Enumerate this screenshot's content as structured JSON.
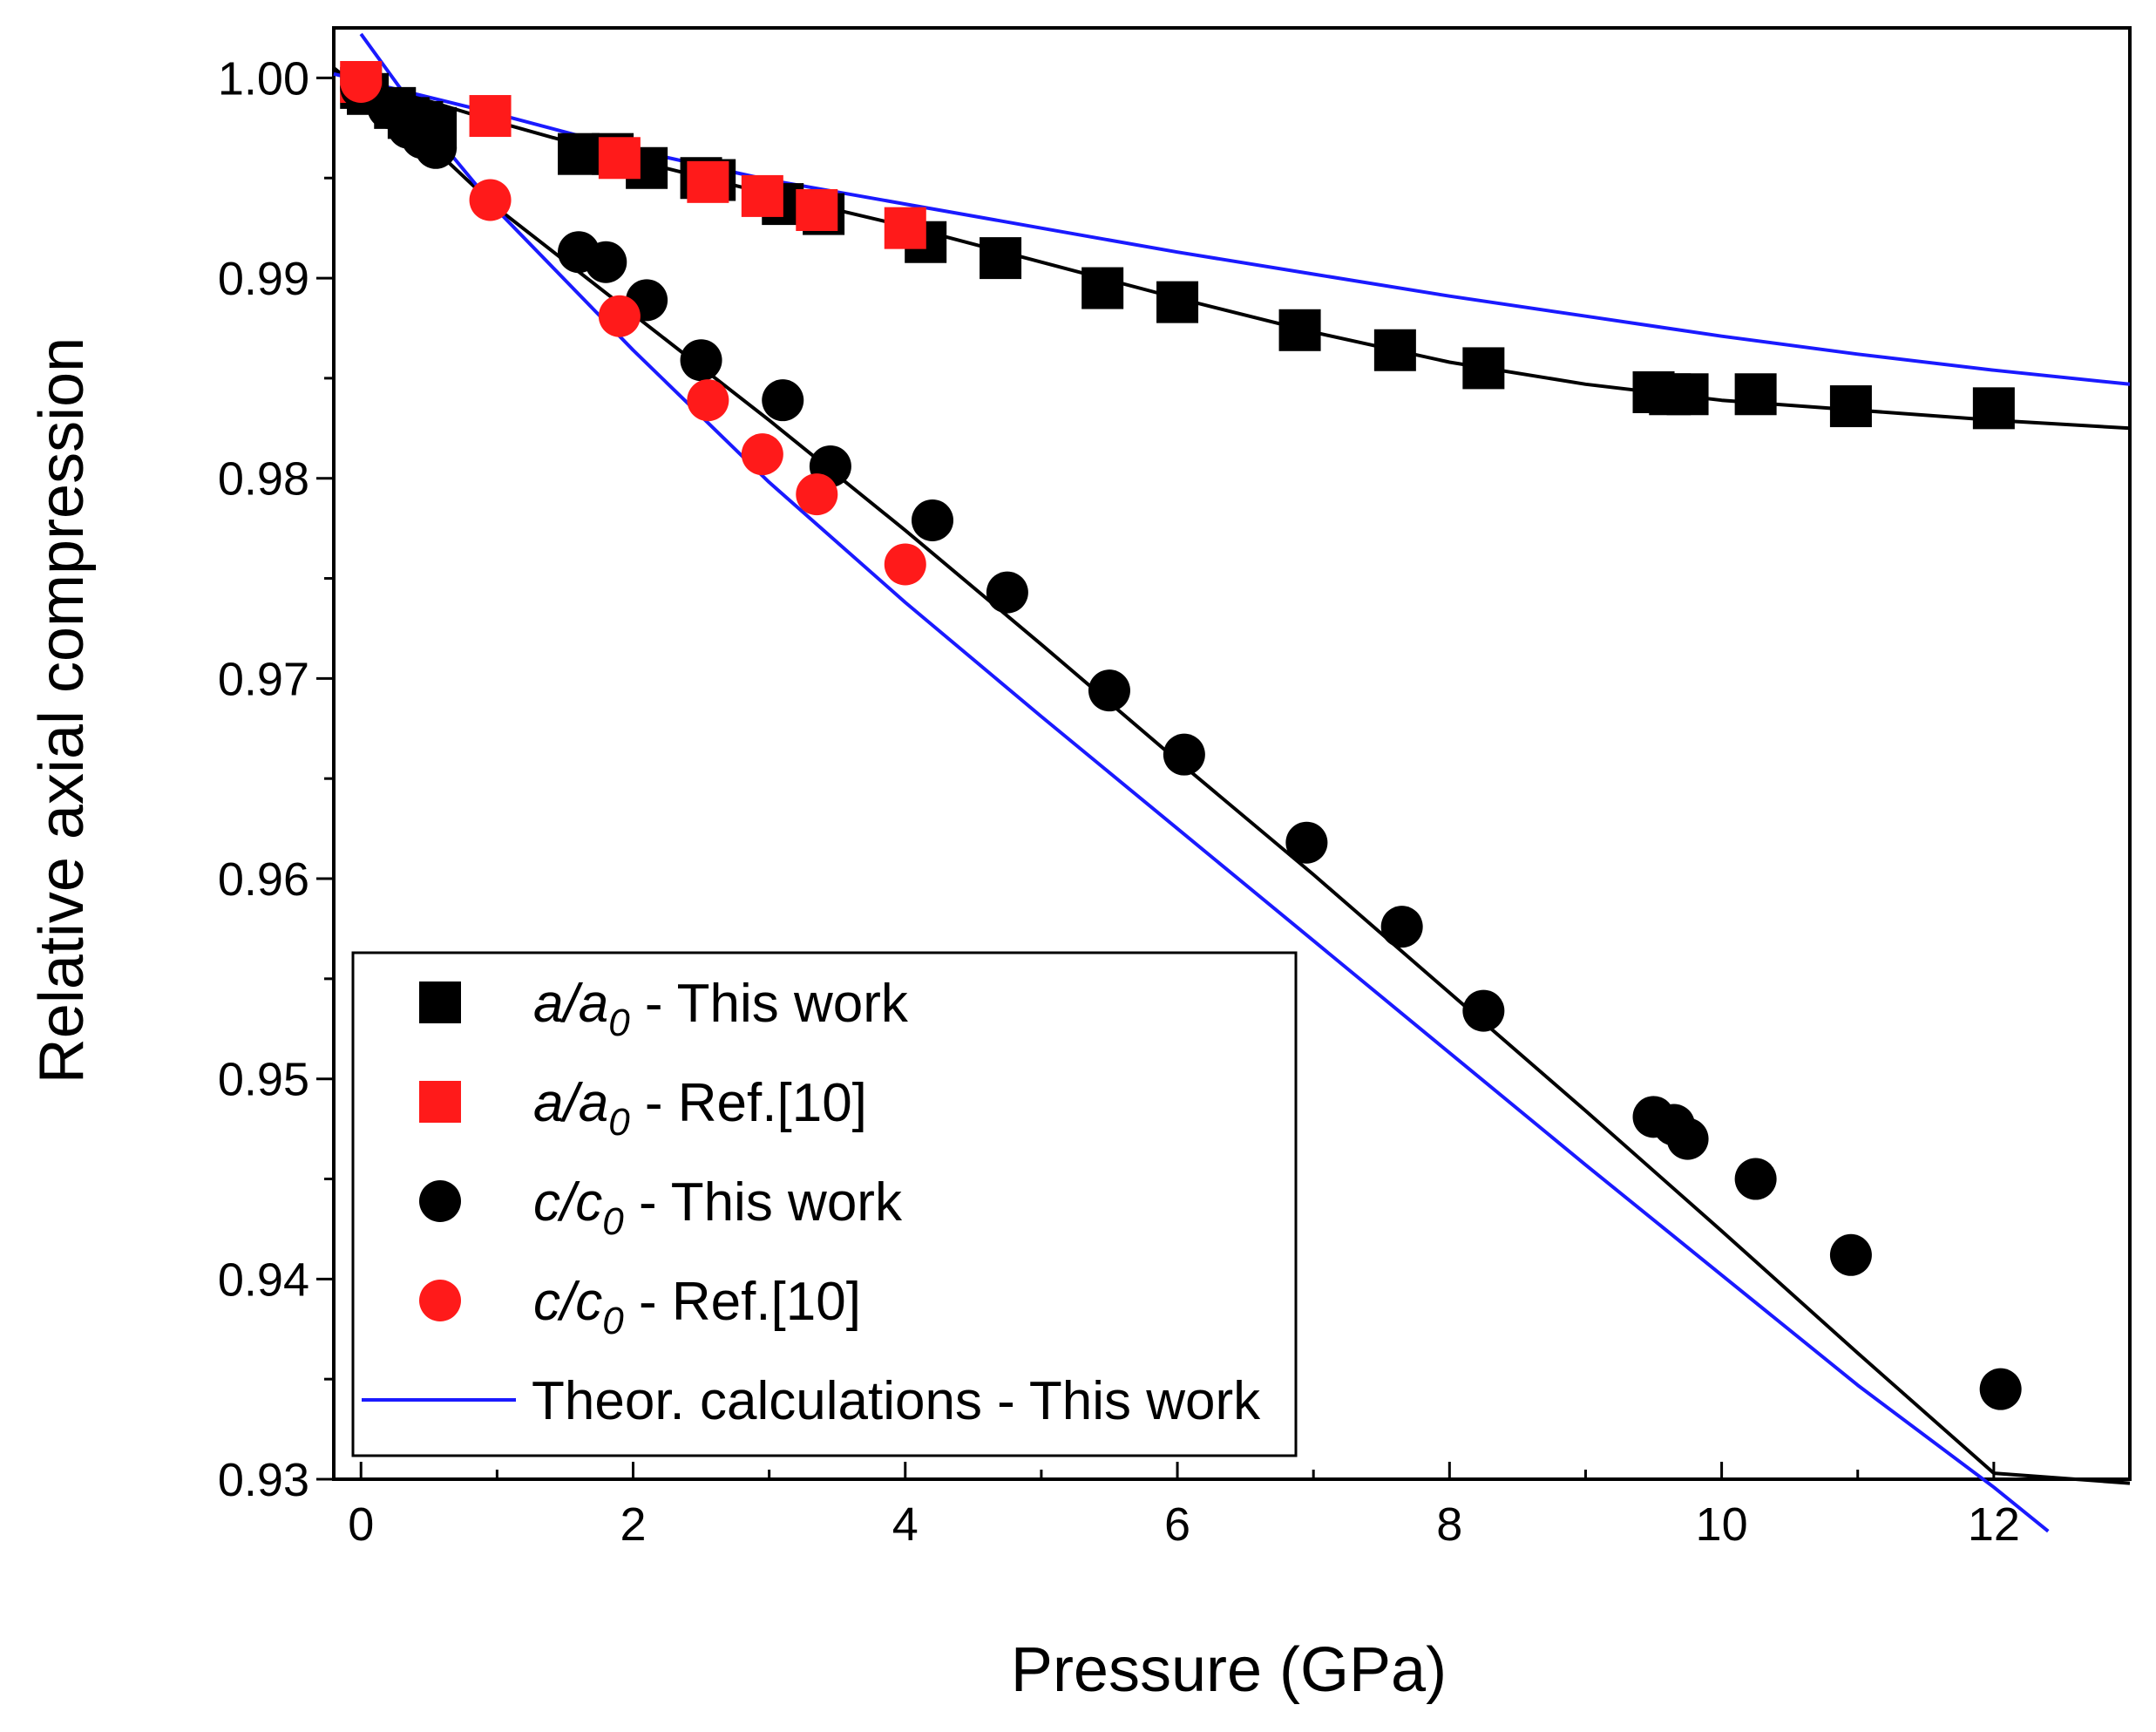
{
  "chart_data": {
    "type": "scatter",
    "xlabel": "Pressure (GPa)",
    "ylabel": "Relative axial compression",
    "xlim": [
      -0.2,
      13
    ],
    "ylim": [
      0.93,
      1.0025
    ],
    "x_ticks": [
      0,
      2,
      4,
      6,
      8,
      10,
      12
    ],
    "x_tick_labels": [
      "0",
      "2",
      "4",
      "6",
      "8",
      "10",
      "12"
    ],
    "y_ticks": [
      0.93,
      0.94,
      0.95,
      0.96,
      0.97,
      0.98,
      0.99,
      1.0
    ],
    "y_tick_labels": [
      "0.93",
      "0.94",
      "0.95",
      "0.96",
      "0.97",
      "0.98",
      "0.99",
      "1.00"
    ],
    "grid": false,
    "legend_position": "bottom-left",
    "series": [
      {
        "name": "a/a0 - This work",
        "marker": "square",
        "color": "#000000",
        "points": [
          [
            0,
            0.9995
          ],
          [
            0.05,
            0.9992
          ],
          [
            0.25,
            0.9985
          ],
          [
            0.35,
            0.998
          ],
          [
            0.45,
            0.9978
          ],
          [
            0.55,
            0.9975
          ],
          [
            1.6,
            0.9962
          ],
          [
            1.85,
            0.9962
          ],
          [
            2.1,
            0.9955
          ],
          [
            2.5,
            0.995
          ],
          [
            2.6,
            0.9949
          ],
          [
            3.1,
            0.9937
          ],
          [
            3.4,
            0.9932
          ],
          [
            4.15,
            0.9918
          ],
          [
            4.7,
            0.991
          ],
          [
            5.45,
            0.9895
          ],
          [
            6.0,
            0.9888
          ],
          [
            6.9,
            0.9874
          ],
          [
            7.6,
            0.9864
          ],
          [
            8.25,
            0.9855
          ],
          [
            9.5,
            0.9843
          ],
          [
            9.62,
            0.9842
          ],
          [
            9.75,
            0.9842
          ],
          [
            10.25,
            0.9842
          ],
          [
            10.95,
            0.9836
          ],
          [
            12.0,
            0.9835
          ]
        ]
      },
      {
        "name": "a/a0 - Ref.[10]",
        "marker": "square",
        "color": "#ff1a1a",
        "points": [
          [
            0,
            0.9998
          ],
          [
            0.95,
            0.9981
          ],
          [
            1.9,
            0.996
          ],
          [
            2.55,
            0.9948
          ],
          [
            2.95,
            0.9941
          ],
          [
            3.35,
            0.9934
          ],
          [
            4.0,
            0.9925
          ]
        ]
      },
      {
        "name": "c/c0 - This work",
        "marker": "circle",
        "color": "#000000",
        "points": [
          [
            0,
            0.9995
          ],
          [
            0.2,
            0.9985
          ],
          [
            0.35,
            0.9975
          ],
          [
            0.45,
            0.997
          ],
          [
            0.55,
            0.9965
          ],
          [
            1.6,
            0.9913
          ],
          [
            1.8,
            0.9908
          ],
          [
            2.1,
            0.9889
          ],
          [
            2.5,
            0.9859
          ],
          [
            3.1,
            0.9839
          ],
          [
            3.45,
            0.9806
          ],
          [
            4.2,
            0.9779
          ],
          [
            4.75,
            0.9743
          ],
          [
            5.5,
            0.9694
          ],
          [
            6.05,
            0.9662
          ],
          [
            6.95,
            0.9618
          ],
          [
            7.65,
            0.9576
          ],
          [
            8.25,
            0.9534
          ],
          [
            9.5,
            0.9481
          ],
          [
            9.65,
            0.9477
          ],
          [
            9.75,
            0.947
          ],
          [
            10.25,
            0.945
          ],
          [
            10.95,
            0.9412
          ],
          [
            12.05,
            0.9345
          ]
        ]
      },
      {
        "name": "c/c0 - Ref.[10]",
        "marker": "circle",
        "color": "#ff1a1a",
        "points": [
          [
            0,
            0.9998
          ],
          [
            0.95,
            0.9939
          ],
          [
            1.9,
            0.9881
          ],
          [
            2.55,
            0.9839
          ],
          [
            2.95,
            0.9812
          ],
          [
            3.35,
            0.9792
          ],
          [
            4.0,
            0.9757
          ]
        ]
      }
    ],
    "fit_lines": [
      {
        "name": "a/a0 fit",
        "color": "#000000",
        "points": [
          [
            -0.2,
            1.0003
          ],
          [
            1,
            0.9978
          ],
          [
            2,
            0.9959
          ],
          [
            3,
            0.9942
          ],
          [
            4,
            0.9926
          ],
          [
            5,
            0.9908
          ],
          [
            6,
            0.989
          ],
          [
            7,
            0.9873
          ],
          [
            8,
            0.9858
          ],
          [
            9,
            0.9847
          ],
          [
            10,
            0.9839
          ],
          [
            11,
            0.9834
          ],
          [
            12,
            0.9829
          ],
          [
            13,
            0.9825
          ]
        ]
      },
      {
        "name": "c/c0 fit",
        "color": "#000000",
        "points": [
          [
            -0.2,
            1.0005
          ],
          [
            0.5,
            0.9967
          ],
          [
            1,
            0.9935
          ],
          [
            2,
            0.9882
          ],
          [
            3,
            0.9829
          ],
          [
            4,
            0.9774
          ],
          [
            5,
            0.9717
          ],
          [
            6,
            0.9659
          ],
          [
            7,
            0.9602
          ],
          [
            8,
            0.9543
          ],
          [
            9,
            0.9484
          ],
          [
            10,
            0.9424
          ],
          [
            11,
            0.9363
          ],
          [
            12,
            0.9303
          ],
          [
            13,
            0.9298
          ]
        ]
      },
      {
        "name": "Theor. a/a0",
        "color": "#1a1aff",
        "points": [
          [
            -0.2,
            1.0002
          ],
          [
            1,
            0.9982
          ],
          [
            2,
            0.9964
          ],
          [
            3,
            0.9949
          ],
          [
            4,
            0.9937
          ],
          [
            5,
            0.9925
          ],
          [
            6,
            0.9913
          ],
          [
            7,
            0.9902
          ],
          [
            8,
            0.9891
          ],
          [
            9,
            0.9881
          ],
          [
            10,
            0.9871
          ],
          [
            11,
            0.9862
          ],
          [
            12,
            0.9854
          ],
          [
            13,
            0.9847
          ]
        ]
      },
      {
        "name": "Theor. c/c0",
        "color": "#1a1aff",
        "points": [
          [
            0,
            1.0022
          ],
          [
            0.5,
            0.9975
          ],
          [
            1,
            0.9934
          ],
          [
            2,
            0.9864
          ],
          [
            3,
            0.9798
          ],
          [
            4,
            0.9738
          ],
          [
            5,
            0.9681
          ],
          [
            6,
            0.9625
          ],
          [
            7,
            0.9569
          ],
          [
            8,
            0.9513
          ],
          [
            9,
            0.9457
          ],
          [
            10,
            0.9402
          ],
          [
            11,
            0.9347
          ],
          [
            12,
            0.9296
          ],
          [
            12.4,
            0.9274
          ]
        ]
      }
    ],
    "legend": [
      {
        "main": "a/a",
        "sub": "0",
        "rest": " - This work",
        "marker": "square",
        "color": "#000000"
      },
      {
        "main": "a/a",
        "sub": "0",
        "rest": " - Ref.[10]",
        "marker": "square",
        "color": "#ff1a1a"
      },
      {
        "main": "c/c",
        "sub": "0",
        "rest": " - This work",
        "marker": "circle",
        "color": "#000000"
      },
      {
        "main": "c/c",
        "sub": "0",
        "rest": " - Ref.[10]",
        "marker": "circle",
        "color": "#ff1a1a"
      },
      {
        "main": "",
        "sub": "",
        "rest": "Theor. calculations - This work",
        "marker": "line",
        "color": "#1a1aff"
      }
    ]
  }
}
